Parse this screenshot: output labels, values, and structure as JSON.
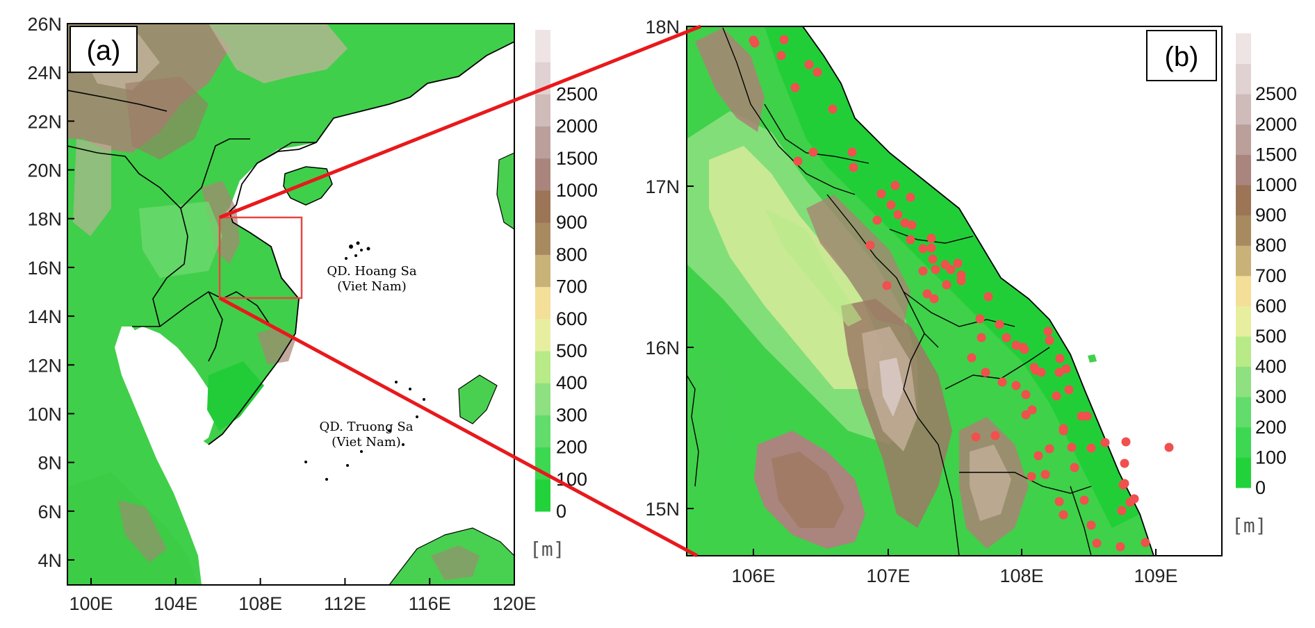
{
  "panel_a": {
    "label": "(a)",
    "lat_ticks": [
      "26N",
      "24N",
      "22N",
      "20N",
      "18N",
      "16N",
      "14N",
      "12N",
      "10N",
      "8N",
      "6N",
      "4N"
    ],
    "lon_ticks": [
      "100E",
      "104E",
      "108E",
      "112E",
      "116E",
      "120E"
    ],
    "annotations": [
      {
        "line1": "QD. Hoang Sa",
        "line2": "(Viet Nam)"
      },
      {
        "line1": "QD. Truong Sa",
        "line2": "(Viet Nam)"
      }
    ]
  },
  "panel_b": {
    "label": "(b)",
    "lat_ticks": [
      "18N",
      "17N",
      "16N",
      "15N"
    ],
    "lon_ticks": [
      "106E",
      "107E",
      "108E",
      "109E"
    ]
  },
  "colorbar": {
    "levels": [
      "0",
      "100",
      "200",
      "300",
      "400",
      "500",
      "600",
      "700",
      "800",
      "900",
      "1000",
      "1500",
      "2000",
      "2500"
    ],
    "colors": [
      "#22d23a",
      "#3cd852",
      "#62dc6a",
      "#8ee080",
      "#b8ea88",
      "#e8eea0",
      "#f3df97",
      "#c8b278",
      "#a88a60",
      "#9c7456",
      "#a9857d",
      "#bb9f9b",
      "#cfbbb9",
      "#e0d2d2",
      "#efe4e4"
    ],
    "unit": "[m]"
  },
  "colors": {
    "zoom_lines": "#e8191c",
    "stations": "#f0504e",
    "ocean": "#ffffff",
    "coast": "#000000"
  },
  "chart_data": {
    "type": "map",
    "stations_count_shown": 86
  }
}
